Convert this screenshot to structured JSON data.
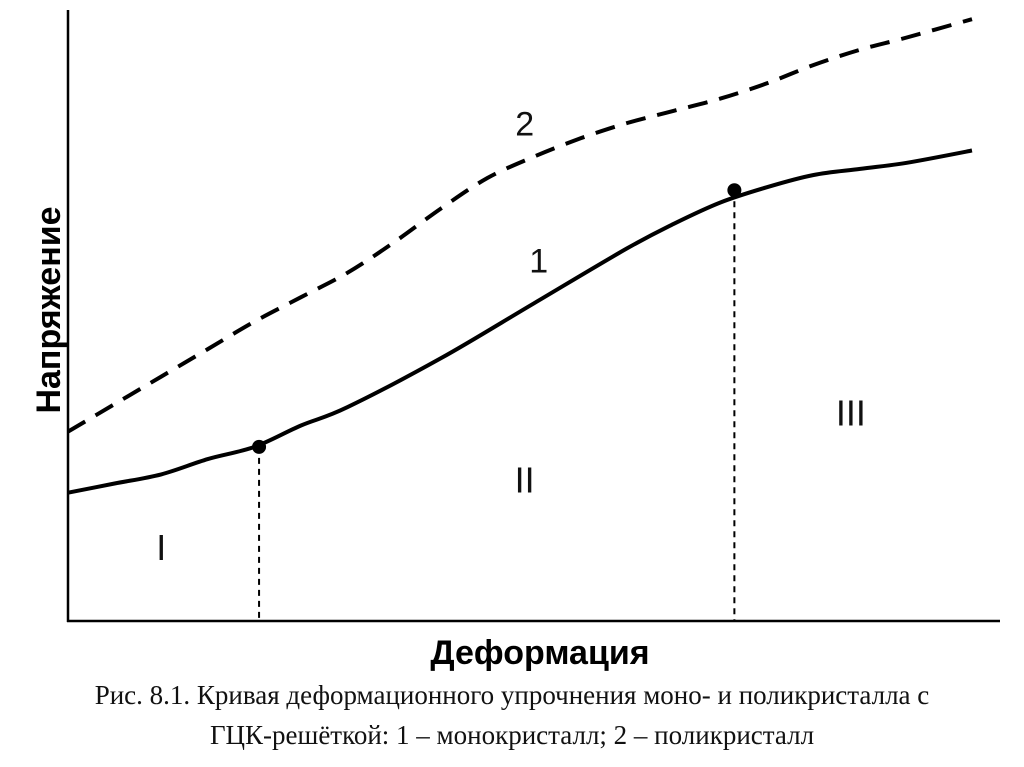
{
  "chart_data": {
    "type": "line",
    "xlabel": "Деформация",
    "ylabel": "Напряжение",
    "xlim": [
      0,
      1
    ],
    "ylim": [
      0,
      1
    ],
    "ticks": "none",
    "grid": false,
    "series": [
      {
        "name": "1",
        "style": "solid",
        "color": "#000000",
        "x": [
          0.0,
          0.05,
          0.1,
          0.15,
          0.2,
          0.25,
          0.3,
          0.4,
          0.5,
          0.6,
          0.65,
          0.7,
          0.75,
          0.8,
          0.85,
          0.9,
          0.97
        ],
        "y": [
          0.21,
          0.225,
          0.24,
          0.265,
          0.285,
          0.32,
          0.35,
          0.43,
          0.52,
          0.61,
          0.65,
          0.685,
          0.71,
          0.73,
          0.74,
          0.75,
          0.77
        ]
      },
      {
        "name": "2",
        "style": "dashed",
        "color": "#000000",
        "x": [
          0.0,
          0.05,
          0.1,
          0.15,
          0.2,
          0.25,
          0.3,
          0.35,
          0.4,
          0.45,
          0.5,
          0.55,
          0.6,
          0.65,
          0.7,
          0.75,
          0.8,
          0.85,
          0.9,
          0.97
        ],
        "y": [
          0.31,
          0.355,
          0.4,
          0.445,
          0.49,
          0.53,
          0.57,
          0.62,
          0.675,
          0.725,
          0.76,
          0.79,
          0.815,
          0.835,
          0.855,
          0.88,
          0.91,
          0.935,
          0.955,
          0.985
        ]
      }
    ],
    "markers": [
      {
        "x": 0.205,
        "y": 0.285
      },
      {
        "x": 0.715,
        "y": 0.705
      }
    ],
    "stage_boundaries": [
      0.205,
      0.715
    ],
    "regions": [
      {
        "label": "I",
        "x": 0.1,
        "y": 0.1
      },
      {
        "label": "II",
        "x": 0.49,
        "y": 0.21
      },
      {
        "label": "III",
        "x": 0.84,
        "y": 0.32
      }
    ],
    "curve_labels": [
      {
        "label": "1",
        "x": 0.505,
        "y": 0.57
      },
      {
        "label": "2",
        "x": 0.49,
        "y": 0.795
      }
    ]
  },
  "caption": {
    "line1": "Рис. 8.1. Кривая деформационного упрочнения моно- и поликристалла с",
    "line2": "ГЦК-решёткой: 1 – монокристалл; 2 – поликристалл"
  }
}
